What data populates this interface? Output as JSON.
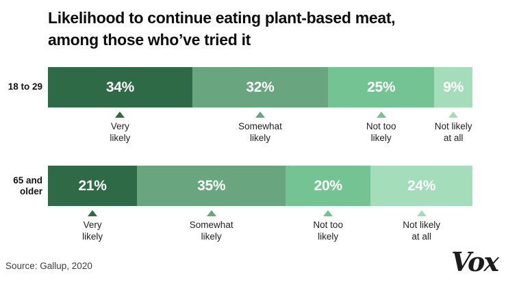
{
  "title_display": "Likelihood to continue eating plant-based meat,\namong those who’ve tried it",
  "source": "Source: Gallup, 2020",
  "brand": "Vox",
  "chart_data": {
    "type": "bar",
    "orientation": "horizontal-stacked",
    "title": "Likelihood to continue eating plant-based meat, among those who’ve tried it",
    "categories": [
      "Very likely",
      "Somewhat likely",
      "Not too likely",
      "Not likely at all"
    ],
    "category_display": [
      "Very\nlikely",
      "Somewhat\nlikely",
      "Not too\nlikely",
      "Not likely\nat all"
    ],
    "segment_colors": [
      "#2e6a46",
      "#69a57e",
      "#73c492",
      "#a3ddba"
    ],
    "value_text_color": "#ffffff",
    "xlim": [
      0,
      100
    ],
    "grid": false,
    "legend_position": "triangle-markers-below-each-segment",
    "rows": [
      {
        "group": "18 to 29",
        "group_display": "18 to 29",
        "values": [
          34,
          32,
          25,
          9
        ],
        "labels": [
          "34%",
          "32%",
          "25%",
          "9%"
        ]
      },
      {
        "group": "65 and older",
        "group_display": "65 and\nolder",
        "values": [
          21,
          35,
          20,
          24
        ],
        "labels": [
          "21%",
          "35%",
          "20%",
          "24%"
        ]
      }
    ]
  }
}
